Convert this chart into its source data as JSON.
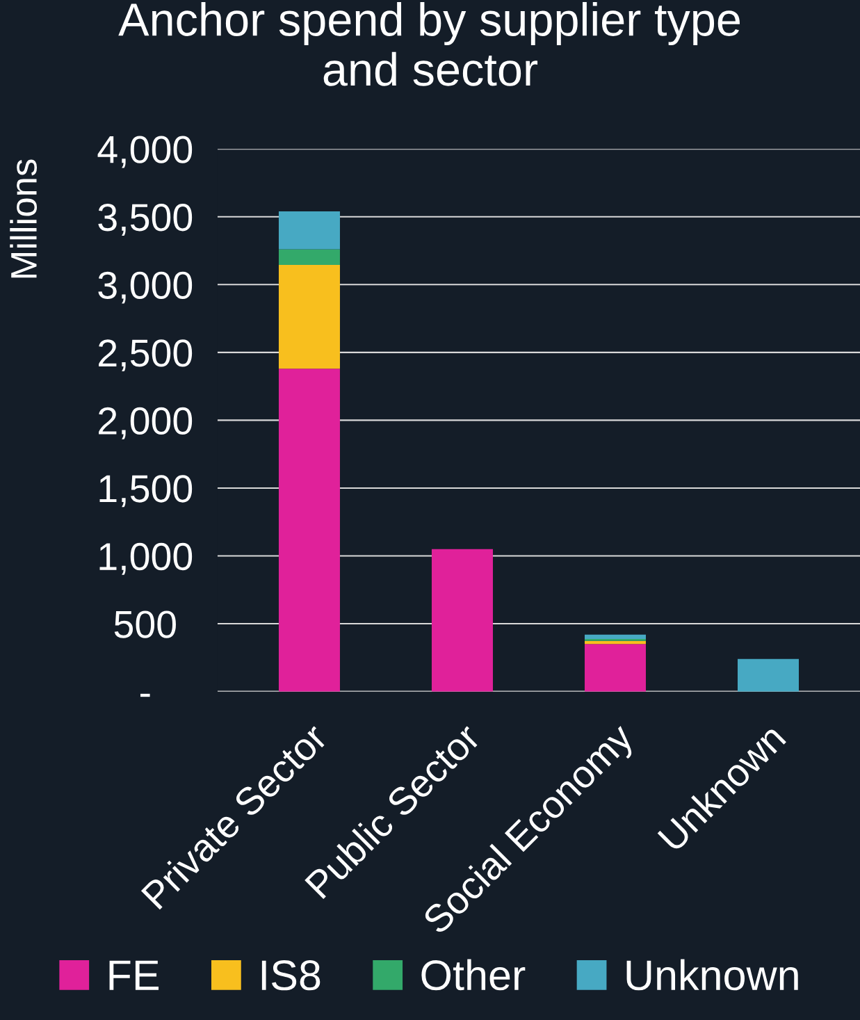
{
  "chart_data": {
    "type": "bar",
    "title": "Anchor spend by supplier type\nand sector",
    "ylabel": "Millions",
    "categories": [
      "Private Sector",
      "Public Sector",
      "Social Economy",
      "Unknown"
    ],
    "series": [
      {
        "name": "FE",
        "color": "#e0219a",
        "values": [
          2380,
          1050,
          350,
          null
        ]
      },
      {
        "name": "IS8",
        "color": "#f8bf1e",
        "values": [
          765,
          null,
          24,
          null
        ]
      },
      {
        "name": "Other",
        "color": "#33a96a",
        "values": [
          115,
          null,
          14,
          null
        ]
      },
      {
        "name": "Unknown",
        "color": "#47a9c3",
        "values": [
          280,
          null,
          31,
          240
        ]
      }
    ],
    "stacked": true,
    "ylim": [
      0,
      4000
    ],
    "yticks": [
      {
        "value": 0,
        "label": "-"
      },
      500,
      {
        "value": 1000,
        "label": "1,000"
      },
      {
        "value": 1500,
        "label": "1,500"
      },
      {
        "value": 2000,
        "label": "2,000"
      },
      {
        "value": 2500,
        "label": "2,500"
      },
      {
        "value": 3000,
        "label": "3,000"
      },
      {
        "value": 3500,
        "label": "3,500"
      },
      {
        "value": 4000,
        "label": "4,000"
      }
    ],
    "grid": "y",
    "legend": "bottom"
  }
}
